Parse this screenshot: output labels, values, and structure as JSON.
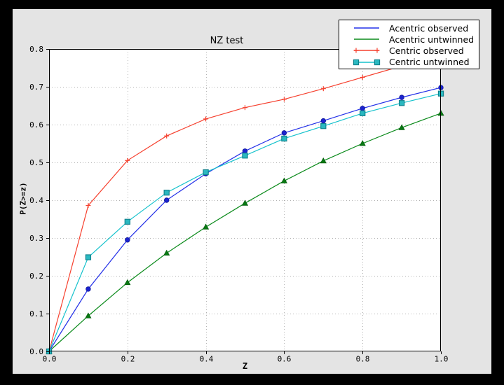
{
  "chart_data": {
    "type": "line",
    "title": "NZ test",
    "xlabel": "Z",
    "ylabel": "P(Z>=z)",
    "xlim": [
      0,
      1
    ],
    "ylim": [
      0,
      0.8
    ],
    "x": [
      0.0,
      0.1,
      0.2,
      0.3,
      0.4,
      0.5,
      0.6,
      0.7,
      0.8,
      0.9,
      1.0
    ],
    "series": [
      {
        "name": "Acentric observed",
        "color": "#2330e8",
        "marker": "circle",
        "marker_color": "#1b23cf",
        "marker_edge": "#101799",
        "legend_markers": "none"
      },
      {
        "name": "Acentric untwinned",
        "color": "#0a8a1a",
        "marker": "triangle",
        "marker_color": "#077a12",
        "marker_edge": "#055c0d",
        "legend_markers": "none"
      },
      {
        "name": "Centric observed",
        "color": "#f6402e",
        "marker": "plus",
        "marker_color": "#f6402e",
        "marker_edge": "#f6402e",
        "legend_markers": "ends"
      },
      {
        "name": "Centric untwinned",
        "color": "#15c2cc",
        "marker": "square",
        "marker_color": "#2ab8c0",
        "marker_edge": "#0e7f8a",
        "legend_markers": "ends"
      }
    ],
    "series_values": [
      [
        0.0,
        0.165,
        0.295,
        0.4,
        0.47,
        0.53,
        0.578,
        0.61,
        0.643,
        0.672,
        0.698
      ],
      [
        0.0,
        0.094,
        0.182,
        0.26,
        0.329,
        0.392,
        0.451,
        0.504,
        0.55,
        0.592,
        0.63
      ],
      [
        0.0,
        0.386,
        0.505,
        0.57,
        0.615,
        0.645,
        0.667,
        0.695,
        0.725,
        0.755,
        0.78
      ],
      [
        0.0,
        0.249,
        0.343,
        0.42,
        0.474,
        0.518,
        0.563,
        0.596,
        0.63,
        0.657,
        0.682
      ]
    ],
    "xticks": {
      "values": [
        0.0,
        0.2,
        0.4,
        0.6,
        0.8,
        1.0
      ],
      "labels": [
        "0.0",
        "0.2",
        "0.4",
        "0.6",
        "0.8",
        "1.0"
      ]
    },
    "yticks": {
      "values": [
        0.0,
        0.1,
        0.2,
        0.3,
        0.4,
        0.5,
        0.6,
        0.7,
        0.8
      ],
      "labels": [
        "0.0",
        "0.1",
        "0.2",
        "0.3",
        "0.4",
        "0.5",
        "0.6",
        "0.7",
        "0.8"
      ]
    },
    "xgridlines": [
      0.2,
      0.4,
      0.6,
      0.8
    ],
    "ygridlines": [
      0.1,
      0.2,
      0.3,
      0.4,
      0.5,
      0.6,
      0.7
    ],
    "grid_on": true,
    "legend_position": "upper right",
    "colors": {
      "page_background": "#000000",
      "figure_background": "#e4e4e4",
      "plot_background": "#ffffff",
      "grid_color": "#b2b2b2",
      "axis_color": "#000000",
      "legend_background": "#ffffff",
      "legend_border": "#000000"
    }
  }
}
